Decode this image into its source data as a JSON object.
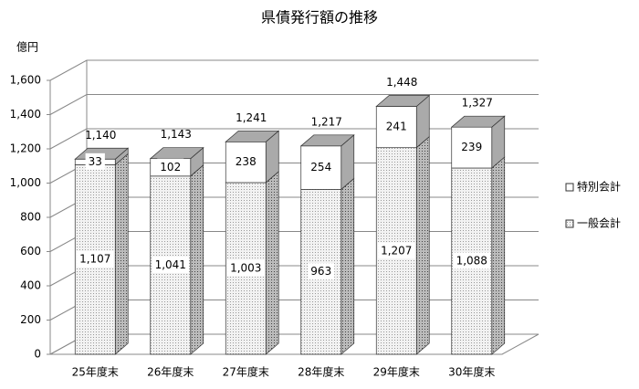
{
  "chart_data": {
    "type": "bar3d_stacked",
    "title": "県債発行額の推移",
    "y_unit": "億円",
    "categories": [
      "25年度末",
      "26年度末",
      "27年度末",
      "28年度末",
      "29年度末",
      "30年度末"
    ],
    "series": [
      {
        "name": "一般会計",
        "color": "#e6e6e6",
        "pattern": "dots",
        "values": [
          1107,
          1041,
          1003,
          963,
          1207,
          1088
        ],
        "value_labels": [
          "1,107",
          "1,041",
          "1,003",
          "963",
          "1,207",
          "1,088"
        ]
      },
      {
        "name": "特別会計",
        "color": "#ffffff",
        "values": [
          33,
          102,
          238,
          254,
          241,
          239
        ]
      }
    ],
    "totals": {
      "values": [
        1140,
        1143,
        1241,
        1217,
        1448,
        1327
      ],
      "value_labels": [
        "1,140",
        "1,143",
        "1,241",
        "1,217",
        "1,448",
        "1,327"
      ]
    },
    "ylim": [
      0,
      1600
    ],
    "yticks": [
      0,
      200,
      400,
      600,
      800,
      {
        "value": 1000,
        "label": "1,000"
      },
      {
        "value": 1200,
        "label": "1,200"
      },
      {
        "value": 1400,
        "label": "1,400"
      },
      {
        "value": 1600,
        "label": "1,600"
      }
    ],
    "grid": true,
    "legend": "right"
  }
}
